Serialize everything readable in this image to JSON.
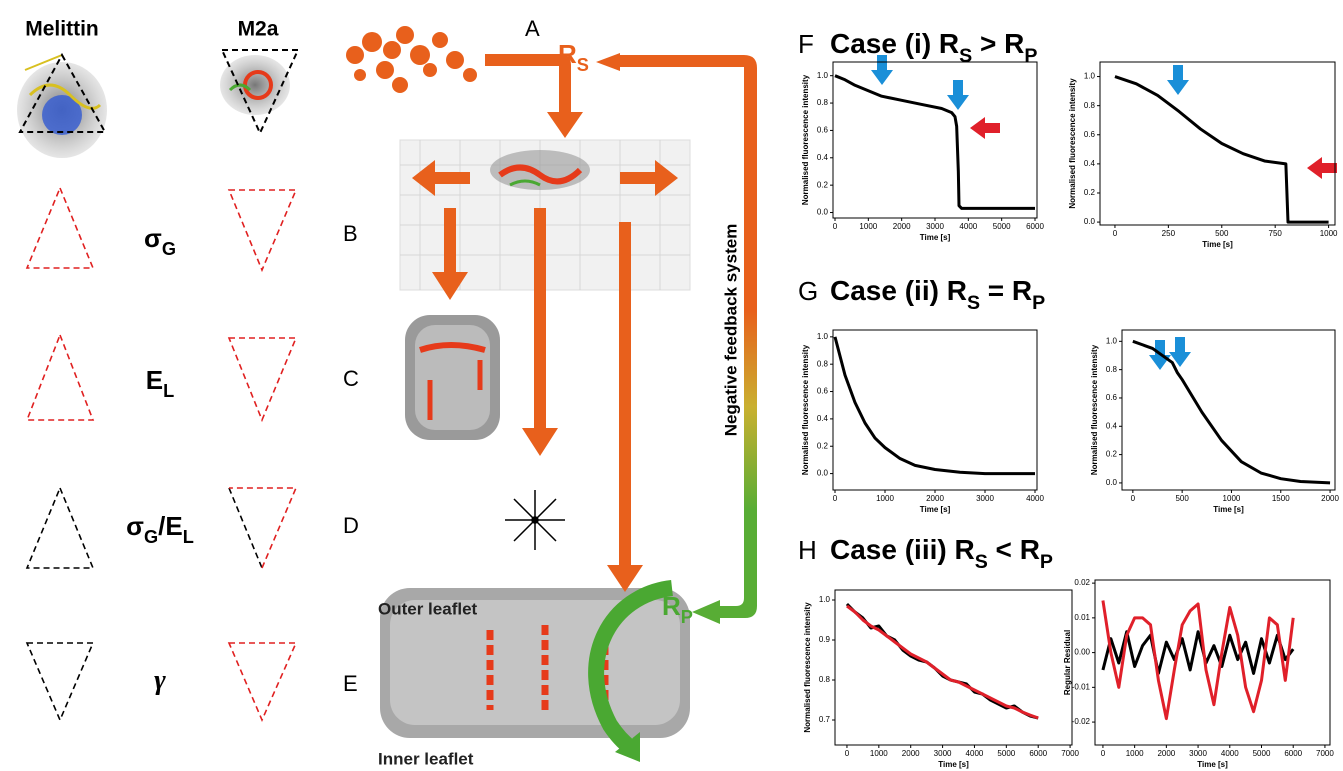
{
  "figure": {
    "headers": [
      "Melittin",
      "M2a"
    ],
    "rows": [
      {
        "label": [
          {
            "text": "σ"
          },
          {
            "text": "G",
            "sub": true
          }
        ]
      },
      {
        "label": [
          {
            "text": "E"
          },
          {
            "text": "L",
            "sub": true
          }
        ]
      },
      {
        "label": [
          {
            "text": "σ"
          },
          {
            "text": "G",
            "sub": true
          },
          {
            "text": "/E"
          },
          {
            "text": "L",
            "sub": true
          }
        ]
      },
      {
        "label": [
          {
            "text": "γ"
          }
        ]
      }
    ],
    "steps": [
      "A",
      "B",
      "C",
      "D",
      "E"
    ],
    "rs": [
      {
        "text": "R"
      },
      {
        "text": "S",
        "sub": true
      }
    ],
    "rp": [
      {
        "text": "R"
      },
      {
        "text": "P",
        "sub": true
      }
    ],
    "feedback": "Negative feedback system",
    "outer": "Outer leaflet",
    "inner": "Inner leaflet",
    "panels": [
      {
        "letter": "F",
        "title": [
          {
            "text": "Case (i) R"
          },
          {
            "text": "S",
            "sub": true
          },
          {
            "text": " > R"
          },
          {
            "text": "P",
            "sub": true
          }
        ]
      },
      {
        "letter": "G",
        "title": [
          {
            "text": "Case (ii) R"
          },
          {
            "text": "S",
            "sub": true
          },
          {
            "text": " = R"
          },
          {
            "text": "P",
            "sub": true
          }
        ]
      },
      {
        "letter": "H",
        "title": [
          {
            "text": "Case (iii) R"
          },
          {
            "text": "S",
            "sub": true
          },
          {
            "text": " < R"
          },
          {
            "text": "P",
            "sub": true
          }
        ]
      }
    ]
  },
  "chart_data": [
    {
      "type": "line",
      "ylabel": "Normalised fluorescence intensity",
      "xlabel": "Time [s]",
      "xlim": [
        -60,
        6060
      ],
      "ylim": [
        -0.04,
        1.1
      ],
      "xticks": [
        0,
        1000,
        2000,
        3000,
        4000,
        5000,
        6000
      ],
      "yticks": [
        {
          "value": 0,
          "label": "0.0"
        },
        0.2,
        0.4,
        0.6,
        0.8,
        {
          "value": 1,
          "label": "1.0"
        }
      ],
      "x": [
        0,
        300,
        600,
        1000,
        1400,
        2000,
        2600,
        3200,
        3500,
        3600,
        3650,
        3700,
        3720,
        3800,
        4500,
        5200,
        6000
      ],
      "series": [
        {
          "color": "#000000",
          "values": [
            1.0,
            0.97,
            0.93,
            0.89,
            0.85,
            0.82,
            0.79,
            0.76,
            0.73,
            0.7,
            0.63,
            0.3,
            0.05,
            0.03,
            0.03,
            0.03,
            0.03
          ]
        }
      ]
    },
    {
      "type": "line",
      "ylabel": "Normalised fluorescence intensity",
      "xlabel": "Time [s]",
      "xlim": [
        -70,
        1030
      ],
      "ylim": [
        -0.02,
        1.1
      ],
      "xticks": [
        0,
        250,
        500,
        750,
        1000
      ],
      "yticks": [
        {
          "value": 0,
          "label": "0.0"
        },
        0.2,
        0.4,
        0.6,
        0.8,
        {
          "value": 1,
          "label": "1.0"
        }
      ],
      "x": [
        0,
        100,
        200,
        300,
        400,
        500,
        600,
        700,
        800,
        810,
        1000
      ],
      "series": [
        {
          "color": "#000000",
          "values": [
            1.0,
            0.95,
            0.87,
            0.76,
            0.64,
            0.54,
            0.47,
            0.42,
            0.4,
            0.0,
            0.0
          ]
        }
      ]
    },
    {
      "type": "line",
      "ylabel": "Normalised fluorescence intensity",
      "xlabel": "Time [s]",
      "xlim": [
        -40,
        4040
      ],
      "ylim": [
        -0.12,
        1.05
      ],
      "xticks": [
        0,
        1000,
        2000,
        3000,
        4000
      ],
      "yticks": [
        {
          "value": 0,
          "label": "0.0"
        },
        0.2,
        0.4,
        0.6,
        0.8,
        {
          "value": 1,
          "label": "1.0"
        }
      ],
      "x": [
        0,
        200,
        400,
        600,
        800,
        1000,
        1300,
        1600,
        2000,
        2500,
        3000,
        3500,
        4000
      ],
      "series": [
        {
          "color": "#000000",
          "values": [
            1.0,
            0.72,
            0.52,
            0.37,
            0.26,
            0.19,
            0.11,
            0.06,
            0.03,
            0.01,
            0.0,
            0.0,
            0.0
          ]
        }
      ]
    },
    {
      "type": "line",
      "ylabel": "Normalised fluorescence intensity",
      "xlabel": "Time [s]",
      "xlim": [
        -110,
        2050
      ],
      "ylim": [
        -0.05,
        1.08
      ],
      "xticks": [
        0,
        500,
        1000,
        1500,
        2000
      ],
      "yticks": [
        {
          "value": 0,
          "label": "0.0"
        },
        0.2,
        0.4,
        0.6,
        0.8,
        {
          "value": 1,
          "label": "1.0"
        }
      ],
      "x": [
        0,
        200,
        400,
        450,
        500,
        700,
        900,
        1100,
        1300,
        1500,
        1700,
        2000
      ],
      "series": [
        {
          "color": "#000000",
          "values": [
            1.0,
            0.95,
            0.85,
            0.78,
            0.73,
            0.5,
            0.3,
            0.15,
            0.07,
            0.03,
            0.01,
            0.0
          ]
        }
      ]
    },
    {
      "type": "line",
      "ylabel": "Normalised fluorescence intensity",
      "xlabel": "Time [s]",
      "xlim": [
        -375,
        7060
      ],
      "ylim": [
        0.6375,
        1.025
      ],
      "xticks": [
        0,
        1000,
        2000,
        3000,
        4000,
        5000,
        6000,
        7000
      ],
      "yticks": [
        0.7,
        0.8,
        0.9,
        {
          "value": 1,
          "label": "1.0"
        }
      ],
      "x": [
        0,
        250,
        500,
        750,
        1000,
        1250,
        1500,
        1750,
        2000,
        2250,
        2500,
        2750,
        3000,
        3250,
        3500,
        3750,
        4000,
        4250,
        4500,
        4750,
        5000,
        5250,
        5500,
        5750,
        6000
      ],
      "series": [
        {
          "color": "#000000",
          "values": [
            0.99,
            0.97,
            0.955,
            0.93,
            0.935,
            0.91,
            0.9,
            0.875,
            0.86,
            0.85,
            0.845,
            0.83,
            0.81,
            0.8,
            0.795,
            0.79,
            0.77,
            0.765,
            0.75,
            0.74,
            0.73,
            0.735,
            0.72,
            0.71,
            0.705
          ]
        },
        {
          "color": "#e0202a",
          "values": [
            0.985,
            0.97,
            0.95,
            0.935,
            0.925,
            0.91,
            0.895,
            0.88,
            0.865,
            0.855,
            0.845,
            0.83,
            0.815,
            0.8,
            0.795,
            0.785,
            0.775,
            0.765,
            0.755,
            0.745,
            0.735,
            0.73,
            0.72,
            0.712,
            0.705
          ]
        }
      ]
    },
    {
      "type": "line",
      "ylabel": "Regular Residual",
      "xlabel": "Time [s]",
      "xlim": [
        -250,
        7160
      ],
      "ylim": [
        -0.0266,
        0.0209
      ],
      "xticks": [
        0,
        1000,
        2000,
        3000,
        4000,
        5000,
        6000,
        7000
      ],
      "yticks": [
        -0.02,
        -0.01,
        {
          "value": 0,
          "label": "0.00"
        },
        0.01,
        0.02
      ],
      "x": [
        0,
        250,
        500,
        750,
        1000,
        1250,
        1500,
        1750,
        2000,
        2250,
        2500,
        2750,
        3000,
        3250,
        3500,
        3750,
        4000,
        4250,
        4500,
        4750,
        5000,
        5250,
        5500,
        5750,
        6000
      ],
      "series": [
        {
          "color": "#000000",
          "values": [
            -0.005,
            0.004,
            -0.003,
            0.006,
            -0.004,
            0.002,
            0.005,
            -0.006,
            0.003,
            -0.002,
            0.004,
            -0.005,
            0.006,
            -0.003,
            0.002,
            -0.004,
            0.005,
            -0.002,
            0.003,
            -0.006,
            0.004,
            -0.003,
            0.005,
            -0.002,
            0.001
          ]
        },
        {
          "color": "#e0202a",
          "values": [
            0.015,
            0.0,
            -0.01,
            0.005,
            0.01,
            0.01,
            0.008,
            -0.008,
            -0.019,
            -0.005,
            0.008,
            0.012,
            0.014,
            -0.005,
            -0.015,
            0.0,
            0.013,
            0.005,
            -0.01,
            -0.017,
            -0.008,
            0.01,
            0.008,
            -0.008,
            0.01
          ]
        }
      ]
    }
  ]
}
